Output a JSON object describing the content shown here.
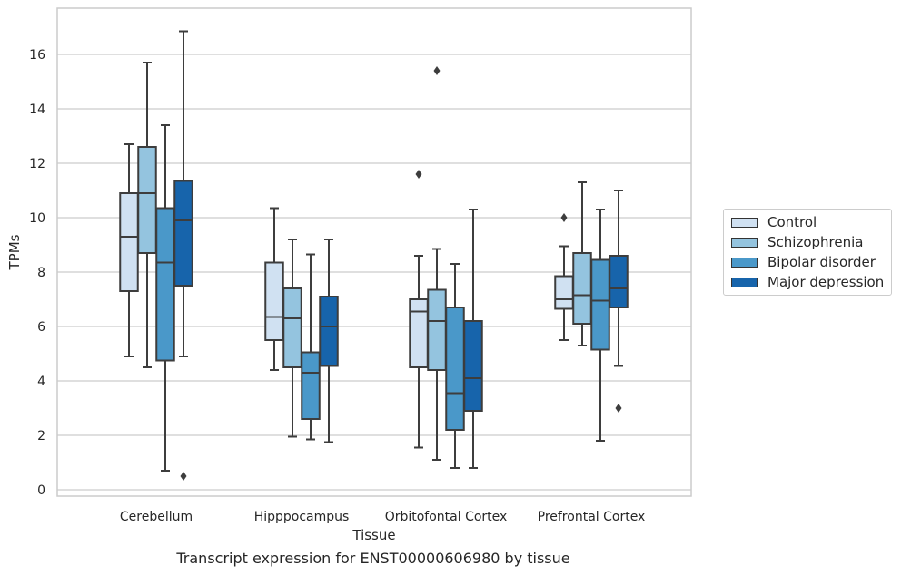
{
  "chart_data": {
    "type": "box",
    "title": "",
    "caption": "Transcript expression for ENST00000606980 by tissue",
    "xlabel": "Tissue",
    "ylabel": "TPMs",
    "ylim": [
      -0.25,
      17.7
    ],
    "yticks": [
      "0",
      "2",
      "4",
      "6",
      "8",
      "10",
      "12",
      "14",
      "16"
    ],
    "grid": "horizontal",
    "legend_position": "right",
    "categories": [
      "Cerebellum",
      "Hipppocampus",
      "Orbitofontal Cortex",
      "Prefrontal Cortex"
    ],
    "series": [
      {
        "name": "Control",
        "color": "#d0e1f2",
        "boxes": [
          {
            "whislo": 4.9,
            "q1": 7.3,
            "med": 9.3,
            "q3": 10.9,
            "whishi": 12.7,
            "fliers": []
          },
          {
            "whislo": 4.4,
            "q1": 5.5,
            "med": 6.35,
            "q3": 8.35,
            "whishi": 10.35,
            "fliers": []
          },
          {
            "whislo": 1.55,
            "q1": 4.5,
            "med": 6.55,
            "q3": 7.0,
            "whishi": 8.6,
            "fliers": [
              11.6
            ]
          },
          {
            "whislo": 5.5,
            "q1": 6.65,
            "med": 7.0,
            "q3": 7.85,
            "whishi": 8.95,
            "fliers": [
              10.0
            ]
          }
        ]
      },
      {
        "name": "Schizophrenia",
        "color": "#94c4df",
        "boxes": [
          {
            "whislo": 4.5,
            "q1": 8.7,
            "med": 10.9,
            "q3": 12.6,
            "whishi": 15.7,
            "fliers": []
          },
          {
            "whislo": 1.95,
            "q1": 4.5,
            "med": 6.3,
            "q3": 7.4,
            "whishi": 9.2,
            "fliers": []
          },
          {
            "whislo": 1.1,
            "q1": 4.4,
            "med": 6.2,
            "q3": 7.35,
            "whishi": 8.85,
            "fliers": [
              15.4
            ]
          },
          {
            "whislo": 5.3,
            "q1": 6.1,
            "med": 7.15,
            "q3": 8.7,
            "whishi": 11.3,
            "fliers": []
          }
        ]
      },
      {
        "name": "Bipolar disorder",
        "color": "#4a98c9",
        "boxes": [
          {
            "whislo": 0.7,
            "q1": 4.75,
            "med": 8.35,
            "q3": 10.35,
            "whishi": 13.4,
            "fliers": []
          },
          {
            "whislo": 1.85,
            "q1": 2.6,
            "med": 4.3,
            "q3": 5.05,
            "whishi": 8.65,
            "fliers": []
          },
          {
            "whislo": 0.8,
            "q1": 2.2,
            "med": 3.55,
            "q3": 6.7,
            "whishi": 8.3,
            "fliers": []
          },
          {
            "whislo": 1.8,
            "q1": 5.15,
            "med": 6.95,
            "q3": 8.45,
            "whishi": 10.3,
            "fliers": []
          }
        ]
      },
      {
        "name": "Major depression",
        "color": "#1764ab",
        "boxes": [
          {
            "whislo": 4.9,
            "q1": 7.5,
            "med": 9.9,
            "q3": 11.35,
            "whishi": 16.85,
            "fliers": [
              0.5
            ]
          },
          {
            "whislo": 1.75,
            "q1": 4.55,
            "med": 6.0,
            "q3": 7.1,
            "whishi": 9.2,
            "fliers": []
          },
          {
            "whislo": 0.8,
            "q1": 2.9,
            "med": 4.1,
            "q3": 6.2,
            "whishi": 10.3,
            "fliers": []
          },
          {
            "whislo": 4.55,
            "q1": 6.7,
            "med": 7.4,
            "q3": 8.6,
            "whishi": 11.0,
            "fliers": [
              3.0
            ]
          }
        ]
      }
    ]
  }
}
